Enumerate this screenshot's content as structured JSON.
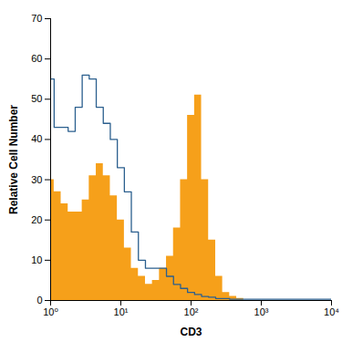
{
  "chart_data": {
    "type": "line",
    "x_label": "CD3",
    "y_label": "Relative Cell Number",
    "log": "x",
    "xlim": [
      1,
      10000
    ],
    "xticks": [
      {
        "value": 1,
        "label": "10⁰"
      },
      {
        "value": 10,
        "label": "10¹"
      },
      {
        "value": 100,
        "label": "10²"
      },
      {
        "value": 1000,
        "label": "10³"
      },
      {
        "value": 10000,
        "label": "10⁴"
      }
    ],
    "ylim": [
      0,
      70
    ],
    "yticks": [
      0,
      10,
      20,
      30,
      40,
      50,
      60,
      70
    ],
    "x": [
      1,
      1.26,
      1.58,
      2,
      2.51,
      3.16,
      3.98,
      5.01,
      6.31,
      7.94,
      10,
      12.6,
      15.8,
      20,
      25.1,
      31.6,
      39.8,
      50.1,
      63.1,
      79.4,
      100,
      126,
      158,
      200,
      251,
      316,
      398,
      501,
      631,
      794,
      1000,
      10000
    ],
    "series": [
      {
        "type": "area",
        "color": "#f6a01a",
        "values": [
          30,
          27,
          24,
          22,
          22,
          25,
          31,
          34,
          31,
          26,
          20,
          13,
          8,
          6,
          4,
          5,
          8,
          11,
          18,
          30,
          46,
          51,
          30,
          15,
          6,
          2,
          1,
          0.5,
          0,
          0,
          0,
          0
        ]
      },
      {
        "type": "line",
        "color": "#2b5f8e",
        "values": [
          55,
          43,
          43,
          42,
          48,
          56,
          55,
          48,
          44,
          40,
          33,
          27,
          17,
          10,
          8,
          8,
          8,
          6,
          4,
          3,
          2,
          1.5,
          1,
          0.8,
          0.5,
          0.5,
          0.3,
          0.3,
          0.3,
          0.3,
          0.3,
          0.3
        ]
      }
    ]
  }
}
